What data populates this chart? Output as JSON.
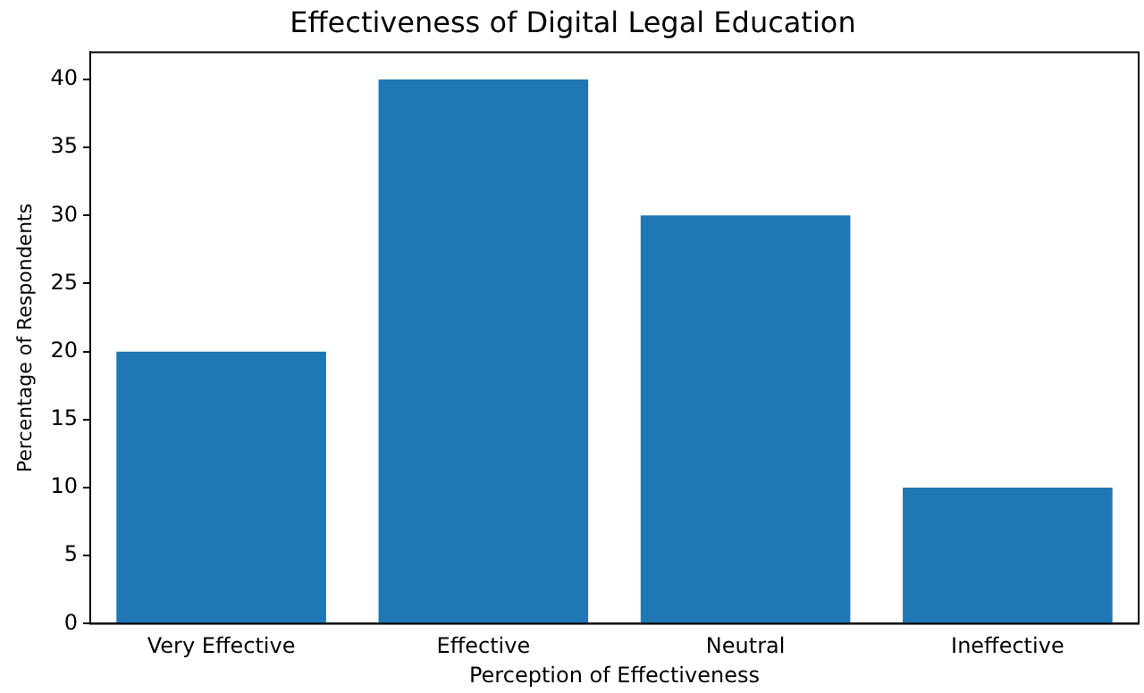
{
  "chart_data": {
    "type": "bar",
    "title": "Effectiveness of Digital Legal Education",
    "xlabel": "Perception of Effectiveness",
    "ylabel": "Percentage of Respondents",
    "categories": [
      "Very Effective",
      "Effective",
      "Neutral",
      "Ineffective"
    ],
    "values": [
      20,
      40,
      30,
      10
    ],
    "color": "#1f77b4",
    "ylim": [
      0,
      42
    ],
    "yticks": [
      0,
      5,
      10,
      15,
      20,
      25,
      30,
      35,
      40
    ],
    "grid": false,
    "legend": false
  }
}
